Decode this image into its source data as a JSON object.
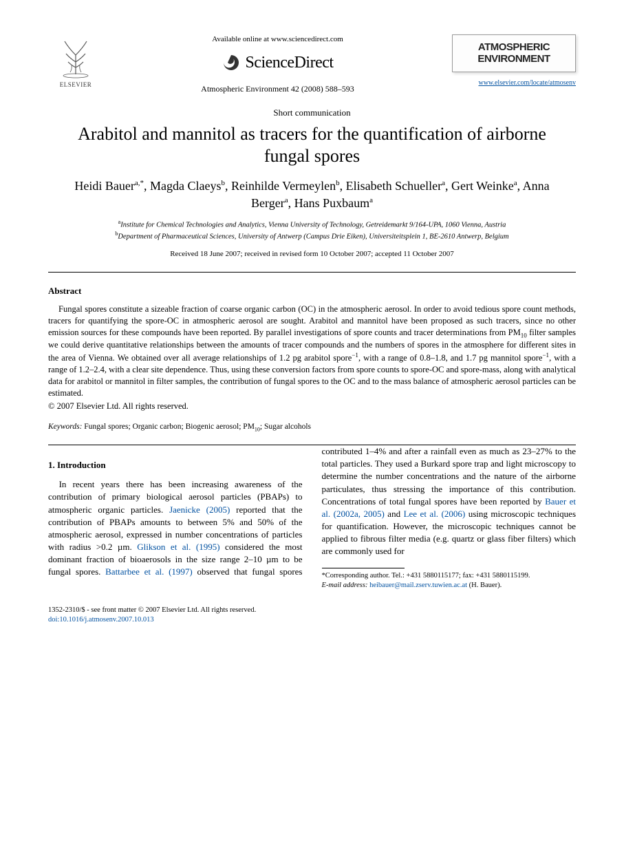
{
  "header": {
    "available_online": "Available online at www.sciencedirect.com",
    "sciencedirect": "ScienceDirect",
    "elsevier_label": "ELSEVIER",
    "journal_ref": "Atmospheric Environment 42 (2008) 588–593",
    "journal_box_line1": "ATMOSPHERIC",
    "journal_box_line2": "ENVIRONMENT",
    "journal_link": "www.elsevier.com/locate/atmosenv"
  },
  "article": {
    "short_comm": "Short communication",
    "title": "Arabitol and mannitol as tracers for the quantification of airborne fungal spores",
    "authors_html": "Heidi Bauer<sup>a,*</sup>, Magda Claeys<sup>b</sup>, Reinhilde Vermeylen<sup>b</sup>, Elisabeth Schueller<sup>a</sup>, Gert Weinke<sup>a</sup>, Anna Berger<sup>a</sup>, Hans Puxbaum<sup>a</sup>",
    "affiliations": [
      "<sup>a</sup>Institute for Chemical Technologies and Analytics, Vienna University of Technology, Getreidemarkt 9/164-UPA, 1060 Vienna, Austria",
      "<sup>b</sup>Department of Pharmaceutical Sciences, University of Antwerp (Campus Drie Eiken), Universiteitsplein 1, BE-2610 Antwerp, Belgium"
    ],
    "received": "Received 18 June 2007; received in revised form 10 October 2007; accepted 11 October 2007"
  },
  "abstract": {
    "heading": "Abstract",
    "text": "Fungal spores constitute a sizeable fraction of coarse organic carbon (OC) in the atmospheric aerosol. In order to avoid tedious spore count methods, tracers for quantifying the spore-OC in atmospheric aerosol are sought. Arabitol and mannitol have been proposed as such tracers, since no other emission sources for these compounds have been reported. By parallel investigations of spore counts and tracer determinations from PM<sub>10</sub> filter samples we could derive quantitative relationships between the amounts of tracer compounds and the numbers of spores in the atmosphere for different sites in the area of Vienna. We obtained over all average relationships of 1.2 pg arabitol spore<sup>−1</sup>, with a range of 0.8–1.8, and 1.7 pg mannitol spore<sup>−1</sup>, with a range of 1.2–2.4, with a clear site dependence. Thus, using these conversion factors from spore counts to spore-OC and spore-mass, along with analytical data for arabitol or mannitol in filter samples, the contribution of fungal spores to the OC and to the mass balance of atmospheric aerosol particles can be estimated.",
    "copyright": "© 2007 Elsevier Ltd. All rights reserved."
  },
  "keywords": {
    "label": "Keywords:",
    "text": "Fungal spores; Organic carbon; Biogenic aerosol; PM<sub>10</sub>; Sugar alcohols"
  },
  "intro": {
    "heading": "1. Introduction",
    "body_html": "In recent years there has been increasing awareness of the contribution of primary biological aerosol particles (PBAPs) to atmospheric organic particles. <span class=\"ref-link\">Jaenicke (2005)</span> reported that the contribution of PBAPs amounts to between 5% and 50% of the atmospheric aerosol, expressed in number concentrations of particles with radius &gt;0.2 µm. <span class=\"ref-link\">Glikson et al. (1995)</span> considered the most dominant fraction of bioaerosols in the size range 2–10 µm to be fungal spores. <span class=\"ref-link\">Battarbee et al. (1997)</span> observed that fungal spores contributed 1–4% and after a rainfall even as much as 23–27% to the total particles. They used a Burkard spore trap and light microscopy to determine the number concentrations and the nature of the airborne particulates, thus stressing the importance of this contribution. Concentrations of total fungal spores have been reported by <span class=\"ref-link\">Bauer et al. (2002a, 2005)</span> and <span class=\"ref-link\">Lee et al. (2006)</span> using microscopic techniques for quantification. However, the microscopic techniques cannot be applied to fibrous filter media (e.g. quartz or glass fiber filters) which are commonly used for"
  },
  "footnote": {
    "corresponding": "*Corresponding author. Tel.: +431 5880115177; fax: +431 5880115199.",
    "email_label": "E-mail address:",
    "email": "heibauer@mail.zserv.tuwien.ac.at",
    "email_suffix": "(H. Bauer)."
  },
  "footer": {
    "line1": "1352-2310/$ - see front matter © 2007 Elsevier Ltd. All rights reserved.",
    "doi": "doi:10.1016/j.atmosenv.2007.10.013"
  },
  "colors": {
    "link": "#0050a0",
    "text": "#000000",
    "background": "#ffffff"
  }
}
